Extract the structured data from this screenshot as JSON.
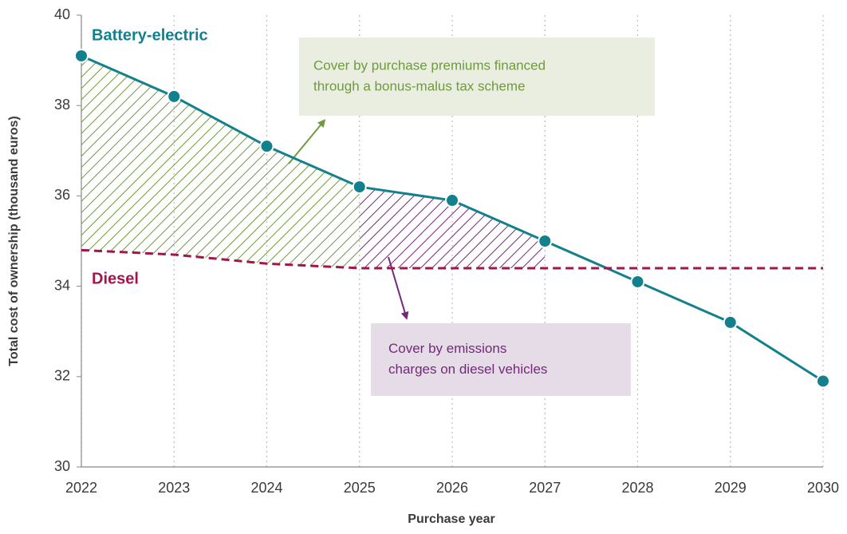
{
  "chart_data": {
    "type": "line",
    "x_label": "Purchase year",
    "y_label": "Total cost of ownership (thousand euros)",
    "x": [
      2022,
      2023,
      2024,
      2025,
      2026,
      2027,
      2028,
      2029,
      2030
    ],
    "xlim": [
      2022,
      2030
    ],
    "xticks": [
      2022,
      2023,
      2024,
      2025,
      2026,
      2027,
      2028,
      2029,
      2030
    ],
    "ylim": [
      30,
      40
    ],
    "yticks": [
      30,
      32,
      34,
      36,
      38,
      40
    ],
    "grid": "x",
    "series": [
      {
        "name": "Battery-electric",
        "color": "#13808e",
        "markers": true,
        "values": [
          39.1,
          38.2,
          37.1,
          36.2,
          35.9,
          35.0,
          34.1,
          33.2,
          31.9
        ]
      },
      {
        "name": "Diesel",
        "color": "#a3164b",
        "dashed": true,
        "values": [
          34.8,
          34.7,
          34.5,
          34.4,
          34.4,
          34.4,
          34.4,
          34.4,
          34.4
        ]
      }
    ],
    "annotations": [
      {
        "text": [
          "Cover by purchase premiums financed",
          "through a bonus-malus tax scheme"
        ],
        "color": "#6f9a3d",
        "background": "#e9eee1"
      },
      {
        "text": [
          "Cover by emissions",
          "charges on diesel vehicles"
        ],
        "color": "#74287a",
        "background": "#e6dce7"
      }
    ]
  }
}
